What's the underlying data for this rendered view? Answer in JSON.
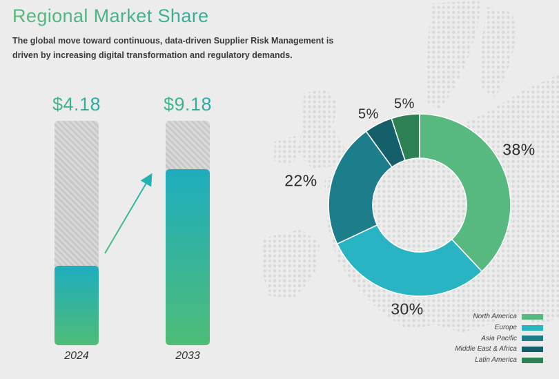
{
  "page": {
    "background": "#ececec"
  },
  "header": {
    "title": "Regional Market Share",
    "subtitle_line1": "The global move toward continuous, data-driven Supplier Risk Management is",
    "subtitle_line2": "driven by increasing digital transformation and regulatory demands."
  },
  "colors": {
    "title_gradient": [
      "#5ab87a",
      "#21a4ad"
    ],
    "bar_fill_gradient": [
      "#1eadbe",
      "#4fbd78"
    ],
    "bar_track": "#d9d9d9",
    "arrow_gradient": [
      "#4dbc7c",
      "#23b2b4"
    ],
    "map_dots": "#d8d9da"
  },
  "chart_data": [
    {
      "type": "bar",
      "categories": [
        "2024",
        "2033"
      ],
      "values": [
        4.18,
        9.18
      ],
      "value_labels": [
        "$4.18",
        "$9.18"
      ],
      "fill_fractions": [
        0.354,
        0.785
      ],
      "annotation": "growth-arrow-between-bars"
    },
    {
      "type": "pie",
      "subtype": "donut",
      "labels": [
        "North America",
        "Europe",
        "Asia Pacific",
        "Middle East & Africa",
        "Latin America"
      ],
      "values": [
        38,
        30,
        22,
        5,
        5
      ],
      "value_labels": [
        "38%",
        "30%",
        "22%",
        "5%",
        "5%"
      ],
      "colors": [
        "#58b980",
        "#28b4c3",
        "#1b7e8a",
        "#145f69",
        "#2e8155"
      ],
      "start_angle_deg": 0,
      "direction": "clockwise",
      "legend_position": "bottom-right"
    }
  ]
}
